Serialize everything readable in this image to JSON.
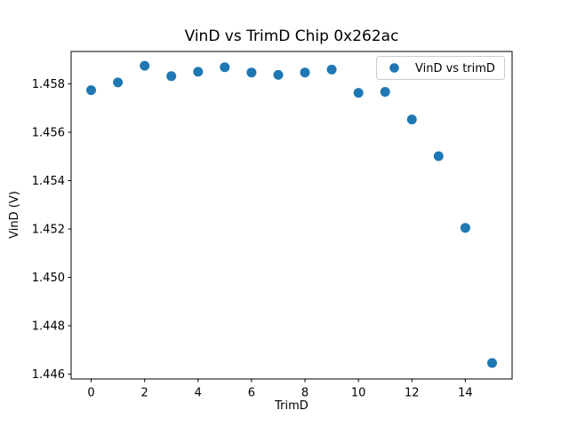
{
  "chart_data": {
    "type": "scatter",
    "title": "VinD vs TrimD Chip 0x262ac",
    "xlabel": "TrimD",
    "ylabel": "VinD (V)",
    "grid": false,
    "legend_position": "upper right",
    "xlim": [
      -0.75,
      15.75
    ],
    "ylim": [
      1.4458,
      1.45934
    ],
    "xticks": [
      0,
      2,
      4,
      6,
      8,
      10,
      12,
      14
    ],
    "xtick_labels": [
      "0",
      "2",
      "4",
      "6",
      "8",
      "10",
      "12",
      "14"
    ],
    "yticks": [
      1.446,
      1.448,
      1.45,
      1.452,
      1.454,
      1.456,
      1.458
    ],
    "ytick_labels": [
      "1.446",
      "1.448",
      "1.450",
      "1.452",
      "1.454",
      "1.456",
      "1.458"
    ],
    "series": [
      {
        "name": "VinD vs trimD",
        "marker_color": "#1f77b4",
        "marker_radius": 5.5,
        "x": [
          0,
          1,
          2,
          3,
          4,
          5,
          6,
          7,
          8,
          9,
          10,
          11,
          12,
          13,
          14,
          15
        ],
        "y": [
          1.45774,
          1.45806,
          1.45875,
          1.45832,
          1.4585,
          1.45869,
          1.45847,
          1.45837,
          1.45847,
          1.45859,
          1.45763,
          1.45767,
          1.45653,
          1.45501,
          1.45205,
          1.44646
        ]
      }
    ],
    "colors": {
      "marker": "#1f77b4",
      "axes": "#000000",
      "legend_border": "#cccccc",
      "background": "#ffffff"
    }
  }
}
